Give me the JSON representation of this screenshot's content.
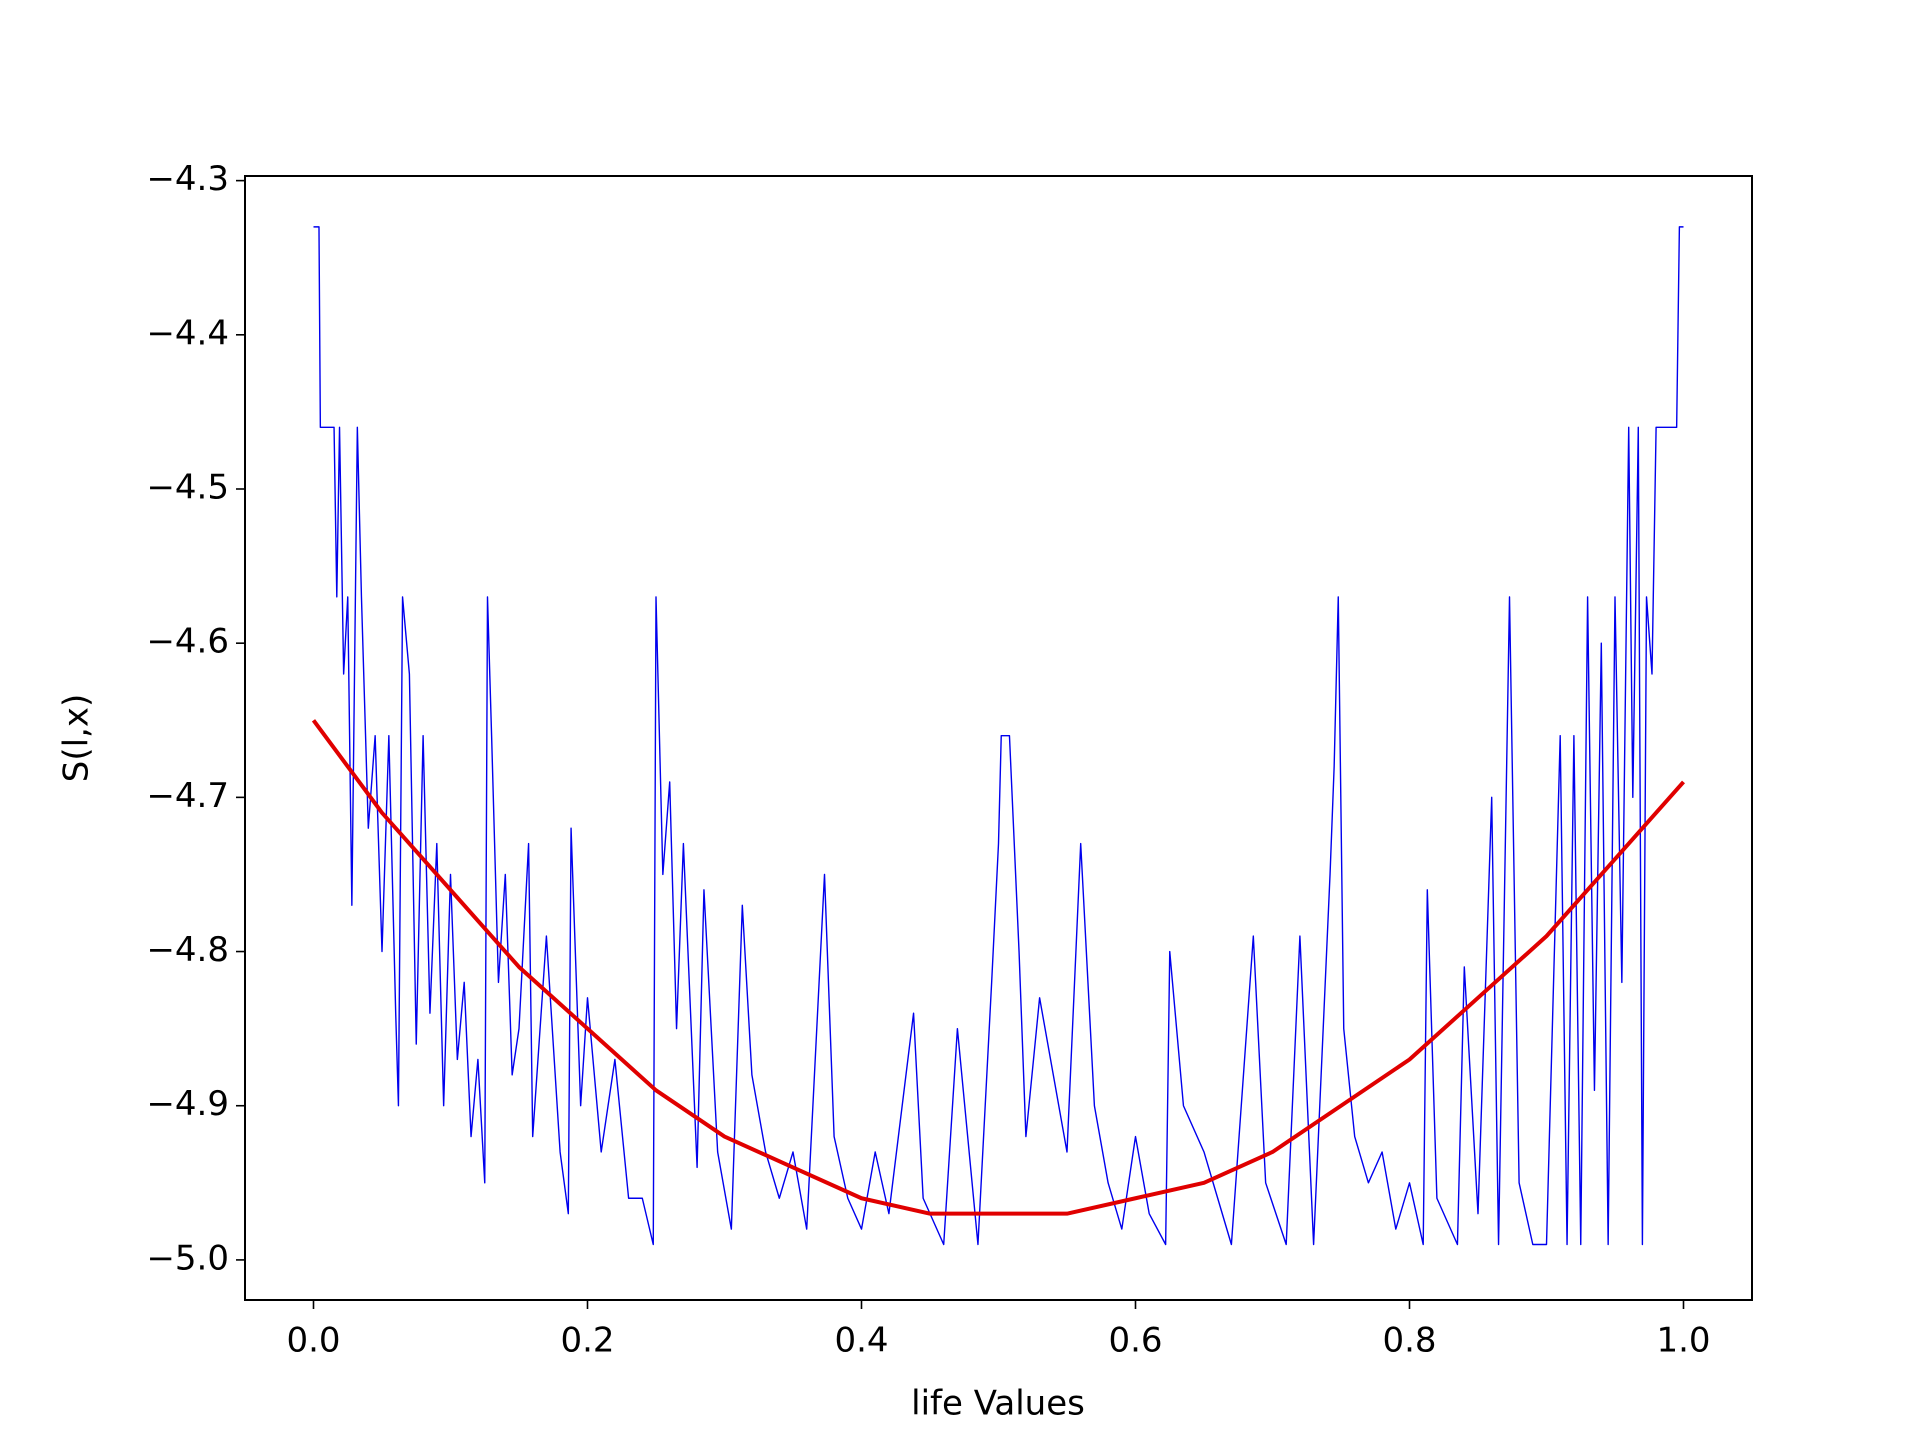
{
  "chart_data": {
    "type": "line",
    "x_label": "life Values",
    "y_label": "S(l,x)",
    "xlim": [
      -0.05,
      1.05
    ],
    "ylim": [
      -5.026,
      -4.297
    ],
    "xticks": [
      {
        "value": 0,
        "label": "0.0"
      },
      0.2,
      0.4,
      0.6,
      0.8,
      {
        "value": 1,
        "label": "1.0"
      }
    ],
    "yticks": [
      {
        "value": -5.0,
        "label": "−5.0"
      },
      {
        "value": -4.9,
        "label": "−4.9"
      },
      {
        "value": -4.8,
        "label": "−4.8"
      },
      {
        "value": -4.7,
        "label": "−4.7"
      },
      {
        "value": -4.6,
        "label": "−4.6"
      },
      {
        "value": -4.5,
        "label": "−4.5"
      },
      {
        "value": -4.4,
        "label": "−4.4"
      },
      {
        "value": -4.3,
        "label": "−4.3"
      }
    ],
    "grid": false,
    "series": [
      {
        "color": "#0000ee",
        "width": 1.4,
        "x": [
          0.0,
          0.004,
          0.005,
          0.015,
          0.017,
          0.019,
          0.022,
          0.025,
          0.028,
          0.032,
          0.035,
          0.04,
          0.045,
          0.05,
          0.055,
          0.06,
          0.062,
          0.065,
          0.07,
          0.075,
          0.08,
          0.085,
          0.09,
          0.095,
          0.1,
          0.105,
          0.11,
          0.115,
          0.12,
          0.125,
          0.127,
          0.13,
          0.135,
          0.14,
          0.145,
          0.15,
          0.157,
          0.16,
          0.17,
          0.18,
          0.186,
          0.188,
          0.195,
          0.2,
          0.21,
          0.22,
          0.23,
          0.24,
          0.248,
          0.25,
          0.255,
          0.26,
          0.265,
          0.27,
          0.28,
          0.285,
          0.295,
          0.305,
          0.313,
          0.32,
          0.33,
          0.34,
          0.35,
          0.36,
          0.373,
          0.38,
          0.39,
          0.4,
          0.41,
          0.42,
          0.438,
          0.445,
          0.46,
          0.47,
          0.485,
          0.495,
          0.5,
          0.502,
          0.508,
          0.515,
          0.52,
          0.53,
          0.54,
          0.55,
          0.56,
          0.57,
          0.58,
          0.59,
          0.6,
          0.61,
          0.622,
          0.625,
          0.635,
          0.65,
          0.66,
          0.67,
          0.686,
          0.695,
          0.71,
          0.72,
          0.73,
          0.742,
          0.745,
          0.748,
          0.752,
          0.76,
          0.77,
          0.78,
          0.79,
          0.8,
          0.81,
          0.813,
          0.82,
          0.835,
          0.84,
          0.85,
          0.86,
          0.865,
          0.873,
          0.88,
          0.89,
          0.9,
          0.91,
          0.915,
          0.92,
          0.925,
          0.93,
          0.935,
          0.94,
          0.945,
          0.95,
          0.955,
          0.96,
          0.963,
          0.967,
          0.97,
          0.973,
          0.977,
          0.98,
          0.985,
          0.995,
          0.997,
          1.0
        ],
        "values": [
          -4.33,
          -4.33,
          -4.46,
          -4.46,
          -4.57,
          -4.46,
          -4.62,
          -4.57,
          -4.77,
          -4.46,
          -4.57,
          -4.72,
          -4.66,
          -4.8,
          -4.66,
          -4.84,
          -4.9,
          -4.57,
          -4.62,
          -4.86,
          -4.66,
          -4.84,
          -4.73,
          -4.9,
          -4.75,
          -4.87,
          -4.82,
          -4.92,
          -4.87,
          -4.95,
          -4.57,
          -4.66,
          -4.82,
          -4.75,
          -4.88,
          -4.85,
          -4.73,
          -4.92,
          -4.79,
          -4.93,
          -4.97,
          -4.72,
          -4.9,
          -4.83,
          -4.93,
          -4.87,
          -4.96,
          -4.96,
          -4.99,
          -4.57,
          -4.75,
          -4.69,
          -4.85,
          -4.73,
          -4.94,
          -4.76,
          -4.93,
          -4.98,
          -4.77,
          -4.88,
          -4.93,
          -4.96,
          -4.93,
          -4.98,
          -4.75,
          -4.92,
          -4.96,
          -4.98,
          -4.93,
          -4.97,
          -4.84,
          -4.96,
          -4.99,
          -4.85,
          -4.99,
          -4.82,
          -4.73,
          -4.66,
          -4.66,
          -4.8,
          -4.92,
          -4.83,
          -4.88,
          -4.93,
          -4.73,
          -4.9,
          -4.95,
          -4.98,
          -4.92,
          -4.97,
          -4.99,
          -4.8,
          -4.9,
          -4.93,
          -4.96,
          -4.99,
          -4.79,
          -4.95,
          -4.99,
          -4.79,
          -4.99,
          -4.75,
          -4.68,
          -4.57,
          -4.85,
          -4.92,
          -4.95,
          -4.93,
          -4.98,
          -4.95,
          -4.99,
          -4.76,
          -4.96,
          -4.99,
          -4.81,
          -4.97,
          -4.7,
          -4.99,
          -4.57,
          -4.95,
          -4.99,
          -4.99,
          -4.66,
          -4.99,
          -4.66,
          -4.99,
          -4.57,
          -4.89,
          -4.6,
          -4.99,
          -4.57,
          -4.82,
          -4.46,
          -4.7,
          -4.46,
          -4.99,
          -4.57,
          -4.62,
          -4.46,
          -4.46,
          -4.46,
          -4.33,
          -4.33
        ]
      },
      {
        "color": "#e00000",
        "width": 4,
        "x": [
          0,
          0.05,
          0.1,
          0.15,
          0.2,
          0.25,
          0.3,
          0.35,
          0.4,
          0.45,
          0.5,
          0.55,
          0.6,
          0.65,
          0.7,
          0.75,
          0.8,
          0.85,
          0.9,
          0.95,
          1.0
        ],
        "values": [
          -4.65,
          -4.71,
          -4.76,
          -4.81,
          -4.85,
          -4.89,
          -4.92,
          -4.94,
          -4.96,
          -4.97,
          -4.97,
          -4.97,
          -4.96,
          -4.95,
          -4.93,
          -4.9,
          -4.87,
          -4.83,
          -4.79,
          -4.74,
          -4.69
        ]
      }
    ]
  }
}
